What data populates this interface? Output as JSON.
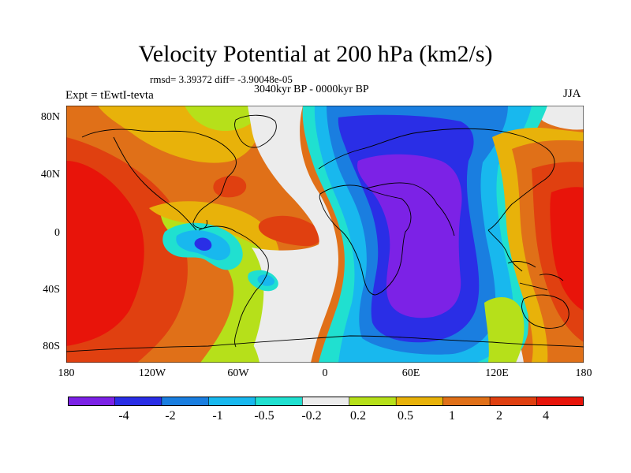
{
  "header": {
    "title": "Velocity Potential at 200 hPa (km2/s)",
    "stats": "rmsd= 3.39372 diff= -3.90048e-05",
    "subtitle": "3040kyr BP - 0000kyr BP",
    "experiment": "Expt = tEwtI-tevta",
    "season": "JJA"
  },
  "axes": {
    "lat_labels": [
      "80N",
      "40N",
      "0",
      "40S",
      "80S"
    ],
    "lon_labels": [
      "180",
      "120W",
      "60W",
      "0",
      "60E",
      "120E",
      "180"
    ]
  },
  "colorbar": {
    "labels": [
      "-4",
      "-2",
      "-1",
      "-0.5",
      "-0.2",
      "0.2",
      "0.5",
      "1",
      "2",
      "4"
    ],
    "colors": [
      "#7c22e6",
      "#2a2ee6",
      "#1a7ee0",
      "#18b8ee",
      "#20e0d0",
      "#ececec",
      "#b6e01a",
      "#e8b20a",
      "#e07018",
      "#e04010",
      "#e8140a"
    ]
  },
  "legend_ramp": {
    "purple": "#7c22e6",
    "blue": "#2a2ee6",
    "mid_blue": "#1a7ee0",
    "cyan": "#18b8ee",
    "teal": "#20e0d0",
    "white": "#ececec",
    "yellow_green": "#b6e01a",
    "gold": "#e8b20a",
    "orange": "#e07018",
    "red_orange": "#e04010",
    "red": "#e8140a"
  }
}
